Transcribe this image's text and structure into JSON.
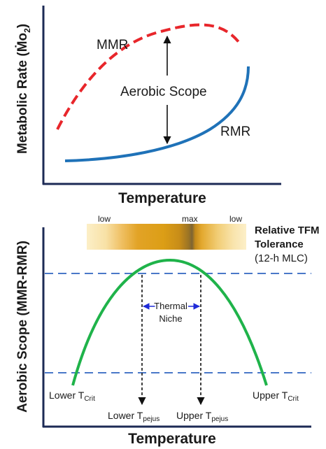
{
  "top_panel": {
    "ylabel": "Metabolic Rate (Ṁo",
    "ylabel_sub": "2",
    "ylabel_close": ")",
    "xlabel": "Temperature",
    "mmr_label": "MMR",
    "rmr_label": "RMR",
    "scope_label": "Aerobic Scope",
    "colors": {
      "mmr": "#e8262b",
      "rmr": "#1f72b8",
      "axis": "#1c2a55"
    }
  },
  "bottom_panel": {
    "ylabel": "Aerobic Scope (MMR-RMR)",
    "xlabel": "Temperature",
    "gradient_labels": {
      "left": "low",
      "center": "max",
      "right": "low"
    },
    "tolerance_title_1": "Relative TFM",
    "tolerance_title_2": "Tolerance",
    "tolerance_sub": "(12-h MLC)",
    "niche_label_1": "Thermal",
    "niche_label_2": "Niche",
    "lower_crit": {
      "main": "Lower T",
      "sub": "Crit"
    },
    "upper_crit": {
      "main": "Upper T",
      "sub": "Crit"
    },
    "lower_pejus": {
      "main": "Lower T",
      "sub": "pejus"
    },
    "upper_pejus": {
      "main": "Upper T",
      "sub": "pejus"
    },
    "colors": {
      "curve": "#1fb34a",
      "dashed": "#4a78c8",
      "niche_arrow": "#1f2bd8",
      "axis": "#1c2a55"
    }
  }
}
